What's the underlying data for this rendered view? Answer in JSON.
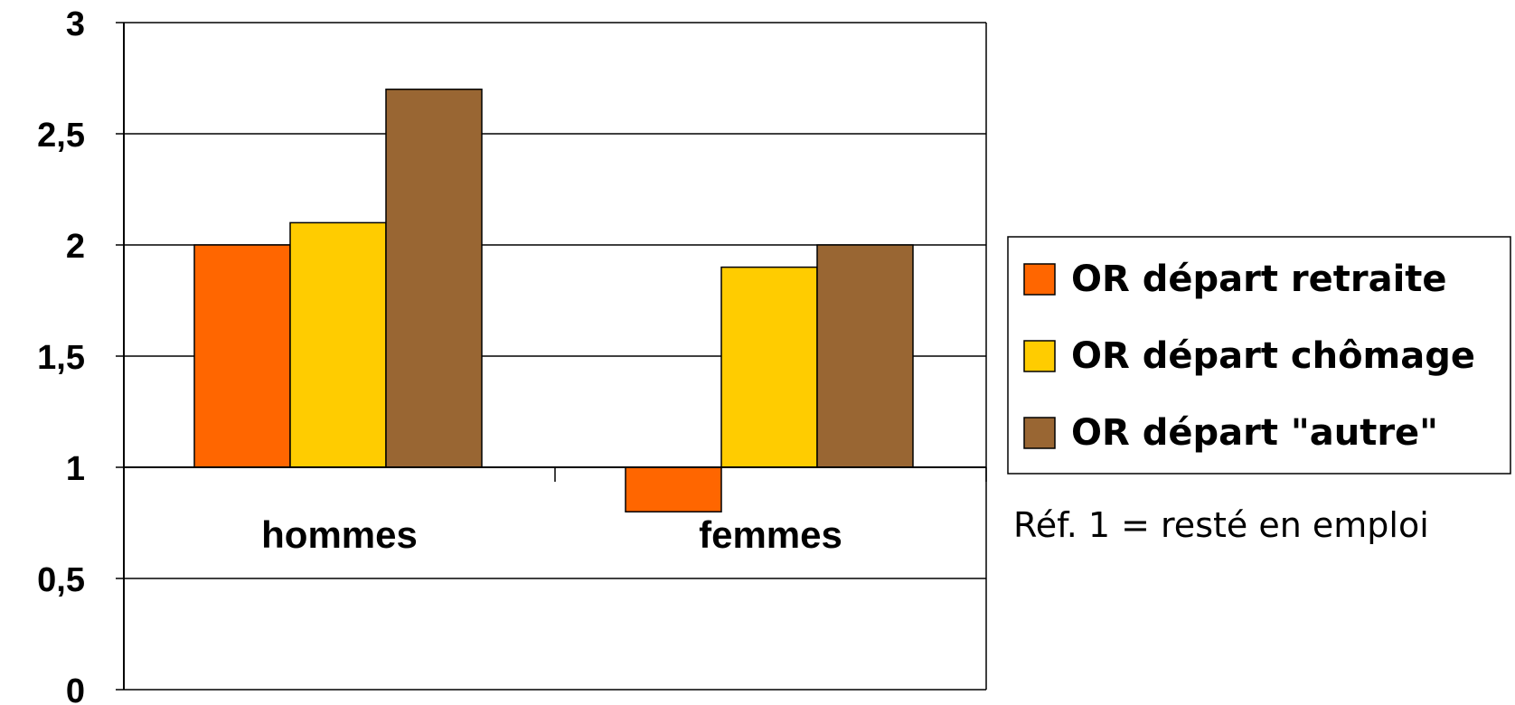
{
  "chart_data": {
    "type": "bar",
    "categories": [
      "hommes",
      "femmes"
    ],
    "baseline": 1,
    "series": [
      {
        "name": "OR départ retraite",
        "values": [
          2.0,
          0.8
        ],
        "color": "#ff6600"
      },
      {
        "name": "OR départ chômage",
        "values": [
          2.1,
          1.9
        ],
        "color": "#ffcc00"
      },
      {
        "name": "OR départ \"autre\"",
        "values": [
          2.7,
          2.0
        ],
        "color": "#996633"
      }
    ],
    "yticks": [
      "0",
      "0,5",
      "1",
      "1,5",
      "2",
      "2,5",
      "3"
    ],
    "ylim": [
      0,
      3
    ],
    "grid": true,
    "legend_position": "right",
    "note": "Réf. 1 = resté en emploi"
  }
}
